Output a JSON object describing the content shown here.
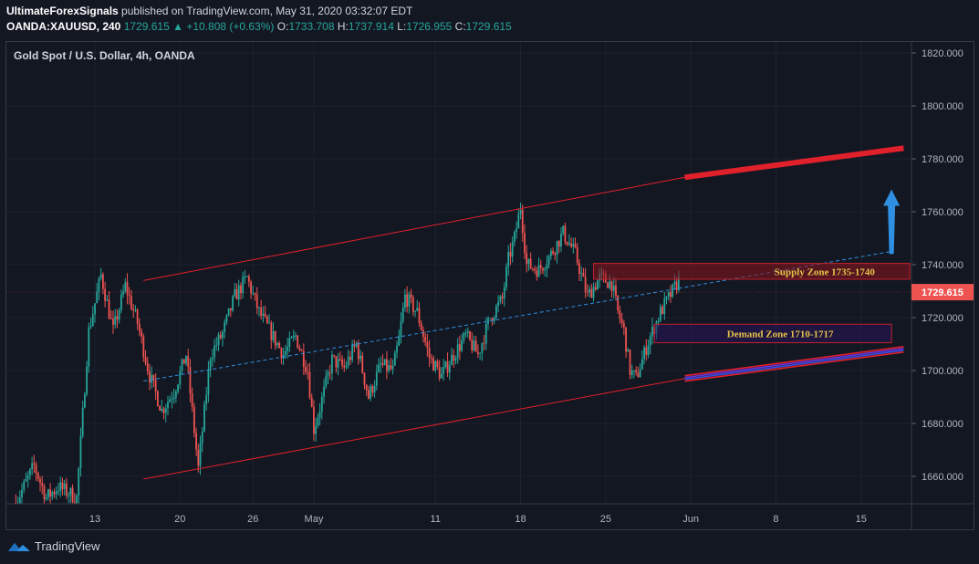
{
  "header": {
    "author": "UltimateForexSignals",
    "published_text": "published on TradingView.com, May 31, 2020 03:32:07 EDT",
    "symbol": "OANDA:XAUUSD, 240",
    "last": "1729.615",
    "change_arrow": "▲",
    "change": "+10.808 (+0.63%)",
    "o_label": "O:",
    "o_value": "1733.708",
    "h_label": "H:",
    "h_value": "1737.914",
    "l_label": "L:",
    "l_value": "1726.955",
    "c_label": "C:",
    "c_value": "1729.615"
  },
  "legend": {
    "title": "Gold Spot / U.S. Dollar, 4h, OANDA"
  },
  "footer": {
    "brand": "TradingView",
    "logo_icon": "tradingview-logo-icon"
  },
  "colors": {
    "background": "#131722",
    "up": "#26a69a",
    "down": "#ef5350",
    "channel": "#e0202b",
    "midline": "#2f8fe0",
    "price_tag": "#ef5350",
    "arrow": "#2f8fe0"
  },
  "chart_data": {
    "type": "candlestick",
    "x_ticks": [
      {
        "label": "13",
        "day": 13
      },
      {
        "label": "20",
        "day": 20
      },
      {
        "label": "26",
        "day": 26
      },
      {
        "label": "May",
        "day": 31
      },
      {
        "label": "11",
        "day": 41
      },
      {
        "label": "18",
        "day": 48
      },
      {
        "label": "25",
        "day": 55
      },
      {
        "label": "Jun",
        "day": 62
      },
      {
        "label": "8",
        "day": 69
      },
      {
        "label": "15",
        "day": 76
      }
    ],
    "y_ticks": [
      "1820.000",
      "1800.000",
      "1780.000",
      "1760.000",
      "1740.000",
      "1720.000",
      "1700.000",
      "1680.000",
      "1660.000"
    ],
    "ylim": [
      1650.5,
      1836
    ],
    "last_price": "1729.615",
    "anchors": [
      [
        6.5,
        1650
      ],
      [
        8,
        1664
      ],
      [
        9,
        1652
      ],
      [
        10,
        1656
      ],
      [
        11.5,
        1652
      ],
      [
        12.5,
        1715
      ],
      [
        13.5,
        1736
      ],
      [
        14.5,
        1715
      ],
      [
        15.5,
        1732
      ],
      [
        16.5,
        1718
      ],
      [
        17.5,
        1698
      ],
      [
        18.5,
        1685
      ],
      [
        19.5,
        1692
      ],
      [
        20.5,
        1706
      ],
      [
        21.5,
        1663
      ],
      [
        22.5,
        1706
      ],
      [
        23.5,
        1714
      ],
      [
        24.5,
        1728
      ],
      [
        25.5,
        1735
      ],
      [
        26.5,
        1722
      ],
      [
        27.5,
        1714
      ],
      [
        28.5,
        1706
      ],
      [
        29.5,
        1713
      ],
      [
        30.5,
        1700
      ],
      [
        31,
        1678
      ],
      [
        31.5,
        1686
      ],
      [
        32.5,
        1704
      ],
      [
        33.5,
        1701
      ],
      [
        34.5,
        1710
      ],
      [
        35.5,
        1690
      ],
      [
        36.5,
        1702
      ],
      [
        37.5,
        1700
      ],
      [
        38,
        1712
      ],
      [
        38.5,
        1728
      ],
      [
        39.5,
        1722
      ],
      [
        40.5,
        1705
      ],
      [
        41.5,
        1698
      ],
      [
        42.5,
        1706
      ],
      [
        43.5,
        1713
      ],
      [
        44.5,
        1706
      ],
      [
        45.5,
        1720
      ],
      [
        46.5,
        1727
      ],
      [
        47,
        1742
      ],
      [
        47.5,
        1750
      ],
      [
        48,
        1762
      ],
      [
        48.5,
        1740
      ],
      [
        49.5,
        1738
      ],
      [
        50.5,
        1744
      ],
      [
        51.5,
        1752
      ],
      [
        52.5,
        1744
      ],
      [
        53.5,
        1728
      ],
      [
        54.5,
        1735
      ],
      [
        55.5,
        1733
      ],
      [
        56,
        1722
      ],
      [
        56.5,
        1715
      ],
      [
        57,
        1700
      ],
      [
        57.5,
        1697
      ],
      [
        58.5,
        1711
      ],
      [
        59.5,
        1722
      ],
      [
        60.5,
        1730
      ],
      [
        61,
        1734
      ]
    ],
    "channel_upper": {
      "from": [
        17,
        1734
      ],
      "to": [
        61.5,
        1773
      ]
    },
    "channel_lower": {
      "from": [
        17,
        1659
      ],
      "to": [
        61.5,
        1697
      ]
    },
    "midline": {
      "from": [
        17,
        1696
      ],
      "to": [
        78.5,
        1745
      ]
    },
    "upper_extension": {
      "from": [
        61.5,
        1773
      ],
      "to": [
        79.5,
        1784
      ]
    },
    "lower_extension": {
      "from": [
        61.5,
        1697
      ],
      "to": [
        79.5,
        1708
      ]
    },
    "forecast_arrow": {
      "from": [
        78.5,
        1744
      ],
      "to": [
        78.5,
        1765
      ]
    },
    "supply_zone": {
      "label": "Supply Zone 1735-1740",
      "x0": 54,
      "x1": 80,
      "y0": 1734.5,
      "y1": 1740.5
    },
    "demand_zone": {
      "label": "Demand Zone 1710-1717",
      "x0": 59,
      "x1": 78.5,
      "y0": 1710.5,
      "y1": 1717.5
    }
  }
}
